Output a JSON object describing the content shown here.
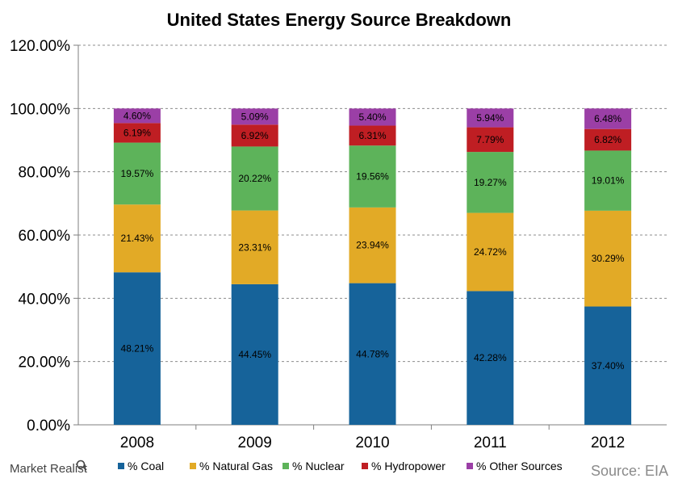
{
  "chart_data": {
    "type": "bar",
    "stacked": true,
    "title": "United States Energy Source Breakdown",
    "categories": [
      "2008",
      "2009",
      "2010",
      "2011",
      "2012"
    ],
    "series": [
      {
        "name": "% Coal",
        "color": "#16639a",
        "values": [
          48.21,
          44.45,
          44.78,
          42.28,
          37.4
        ],
        "labels": [
          "48.21%",
          "44.45%",
          "44.78%",
          "42.28%",
          "37.40%"
        ]
      },
      {
        "name": "% Natural Gas",
        "color": "#e2aa26",
        "values": [
          21.43,
          23.31,
          23.94,
          24.72,
          30.29
        ],
        "labels": [
          "21.43%",
          "23.31%",
          "23.94%",
          "24.72%",
          "30.29%"
        ]
      },
      {
        "name": "% Nuclear",
        "color": "#5db35a",
        "values": [
          19.57,
          20.22,
          19.56,
          19.27,
          19.01
        ],
        "labels": [
          "19.57%",
          "20.22%",
          "19.56%",
          "19.27%",
          "19.01%"
        ]
      },
      {
        "name": "% Hydropower",
        "color": "#bf1e23",
        "values": [
          6.19,
          6.92,
          6.31,
          7.79,
          6.82
        ],
        "labels": [
          "6.19%",
          "6.92%",
          "6.31%",
          "7.79%",
          "6.82%"
        ]
      },
      {
        "name": "% Other Sources",
        "color": "#9b3fa6",
        "values": [
          4.6,
          5.09,
          5.4,
          5.94,
          6.48
        ],
        "labels": [
          "4.60%",
          "5.09%",
          "5.40%",
          "5.94%",
          "6.48%"
        ]
      }
    ],
    "ylim": [
      0,
      120
    ],
    "yticks": [
      "0.00%",
      "20.00%",
      "40.00%",
      "60.00%",
      "80.00%",
      "100.00%",
      "120.00%"
    ],
    "grid": true,
    "legend_position": "bottom"
  },
  "source_text": "Source: EIA",
  "brand_text": "Market Realist"
}
